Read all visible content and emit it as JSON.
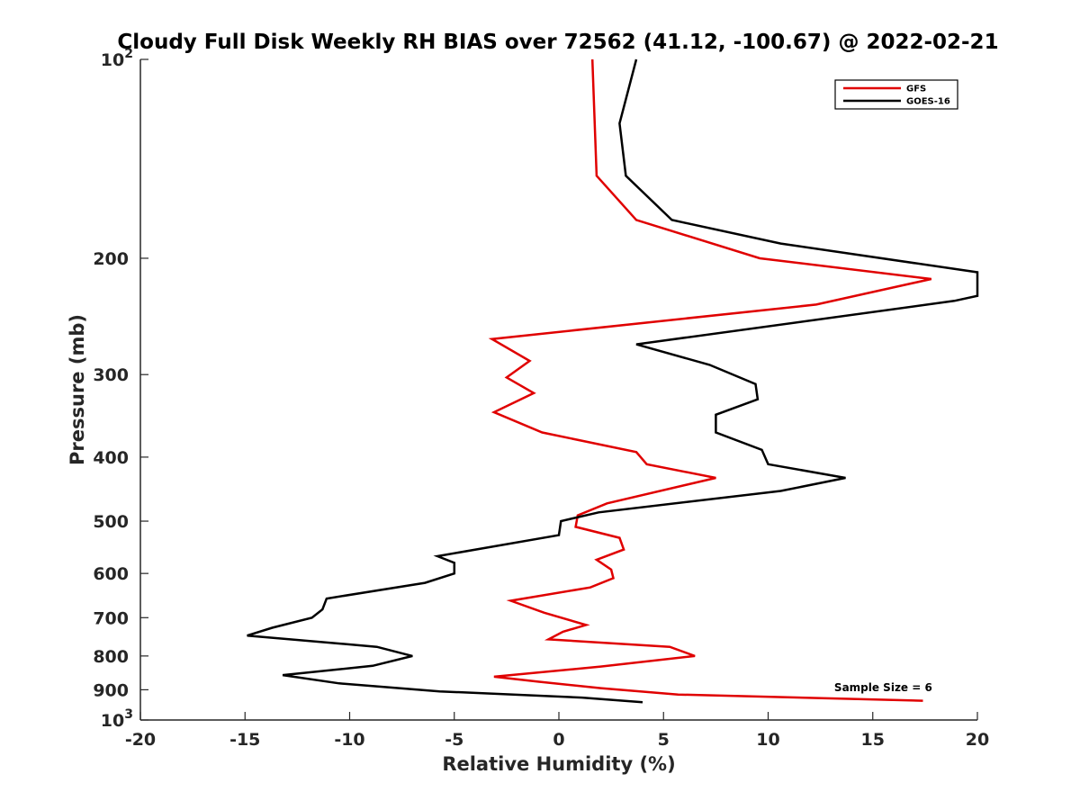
{
  "chart_data": {
    "type": "line",
    "title": "Cloudy Full Disk Weekly RH BIAS over 72562 (41.12, -100.67) @ 2022-02-21",
    "xlabel": "Relative Humidity (%)",
    "ylabel": "Pressure (mb)",
    "xlim": [
      -20,
      20
    ],
    "ylim": [
      1000,
      100
    ],
    "y_scale": "log",
    "y_reversed": true,
    "grid": false,
    "legend_position": "top-right",
    "x_ticks": [
      {
        "value": -20,
        "label": "-20"
      },
      {
        "value": -15,
        "label": "-15"
      },
      {
        "value": -10,
        "label": "-10"
      },
      {
        "value": -5,
        "label": "-5"
      },
      {
        "value": 0,
        "label": "0"
      },
      {
        "value": 5,
        "label": "5"
      },
      {
        "value": 10,
        "label": "10"
      },
      {
        "value": 15,
        "label": "15"
      },
      {
        "value": 20,
        "label": "20"
      }
    ],
    "y_ticks": [
      {
        "value": 100,
        "base": "10",
        "exp": "2"
      },
      {
        "value": 200,
        "label": "200"
      },
      {
        "value": 300,
        "label": "300"
      },
      {
        "value": 400,
        "label": "400"
      },
      {
        "value": 500,
        "label": "500"
      },
      {
        "value": 600,
        "label": "600"
      },
      {
        "value": 700,
        "label": "700"
      },
      {
        "value": 800,
        "label": "800"
      },
      {
        "value": 900,
        "label": "900"
      },
      {
        "value": 1000,
        "base": "10",
        "exp": "3"
      }
    ],
    "series": [
      {
        "name": "GFS",
        "color": "#e00000",
        "points": [
          [
            1.6,
            100
          ],
          [
            1.8,
            150
          ],
          [
            3.7,
            175
          ],
          [
            9.6,
            200
          ],
          [
            17.8,
            215
          ],
          [
            12.3,
            235
          ],
          [
            -3.2,
            265
          ],
          [
            -1.4,
            286
          ],
          [
            -2.5,
            303
          ],
          [
            -1.2,
            320
          ],
          [
            -3.1,
            342
          ],
          [
            -0.8,
            367
          ],
          [
            3.7,
            393
          ],
          [
            4.2,
            410
          ],
          [
            7.5,
            430
          ],
          [
            2.3,
            470
          ],
          [
            0.9,
            490
          ],
          [
            0.8,
            510
          ],
          [
            2.9,
            530
          ],
          [
            3.1,
            552
          ],
          [
            1.8,
            572
          ],
          [
            2.5,
            592
          ],
          [
            2.6,
            610
          ],
          [
            1.5,
            630
          ],
          [
            -2.3,
            660
          ],
          [
            -0.7,
            688
          ],
          [
            1.3,
            718
          ],
          [
            0.2,
            735
          ],
          [
            -0.5,
            755
          ],
          [
            5.3,
            775
          ],
          [
            6.5,
            800
          ],
          [
            2.0,
            830
          ],
          [
            -3.1,
            860
          ],
          [
            -1.0,
            875
          ],
          [
            2.0,
            895
          ],
          [
            5.7,
            915
          ],
          [
            17.4,
            935
          ]
        ]
      },
      {
        "name": "GOES-16",
        "color": "#000000",
        "points": [
          [
            3.7,
            100
          ],
          [
            2.9,
            125
          ],
          [
            3.2,
            150
          ],
          [
            5.4,
            175
          ],
          [
            10.6,
            190
          ],
          [
            20.0,
            210
          ],
          [
            20.0,
            228
          ],
          [
            18.9,
            232
          ],
          [
            3.7,
            270
          ],
          [
            7.2,
            290
          ],
          [
            9.4,
            310
          ],
          [
            9.5,
            327
          ],
          [
            7.5,
            345
          ],
          [
            7.5,
            367
          ],
          [
            9.7,
            390
          ],
          [
            10.0,
            410
          ],
          [
            13.7,
            430
          ],
          [
            10.6,
            450
          ],
          [
            1.9,
            485
          ],
          [
            0.1,
            500
          ],
          [
            0.0,
            525
          ],
          [
            -5.8,
            565
          ],
          [
            -5.0,
            578
          ],
          [
            -5.0,
            600
          ],
          [
            -6.4,
            620
          ],
          [
            -11.1,
            655
          ],
          [
            -11.3,
            680
          ],
          [
            -11.8,
            700
          ],
          [
            -13.7,
            725
          ],
          [
            -14.9,
            745
          ],
          [
            -8.7,
            775
          ],
          [
            -7.0,
            800
          ],
          [
            -8.9,
            828
          ],
          [
            -13.2,
            855
          ],
          [
            -10.5,
            880
          ],
          [
            -5.7,
            905
          ],
          [
            1.1,
            925
          ],
          [
            4.0,
            940
          ]
        ]
      }
    ],
    "annotations": [
      {
        "text": "Sample Size = 6",
        "x": 15.5,
        "y": 905
      }
    ]
  }
}
